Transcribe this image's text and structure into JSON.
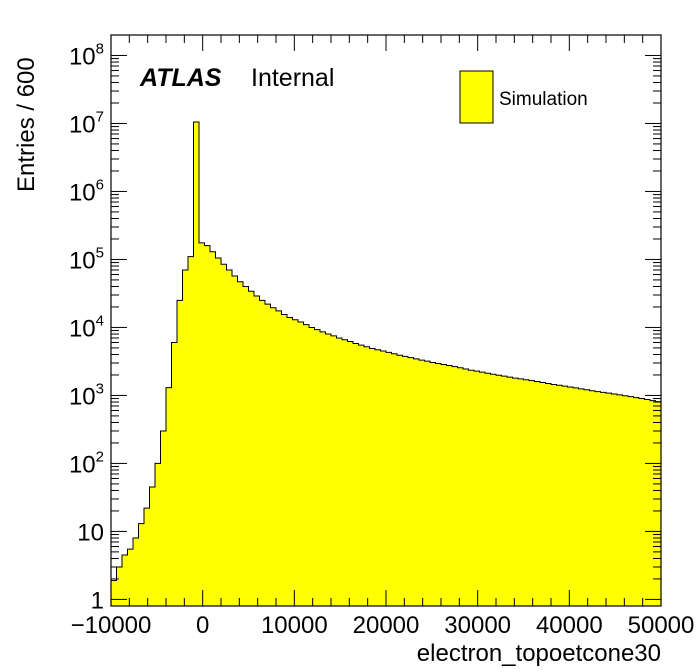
{
  "chart_data": {
    "type": "bar",
    "histogram": true,
    "xlabel": "electron_topoetcone30",
    "ylabel": "Entries / 600",
    "xlim": [
      -10000,
      50000
    ],
    "ylim": [
      0.8,
      200000000
    ],
    "log_y": true,
    "grid": false,
    "legend_position": "top-right",
    "label": {
      "experiment": "ATLAS",
      "status": "Internal"
    },
    "x_ticks": [
      {
        "value": -10000,
        "label": "−10000"
      },
      {
        "value": 0,
        "label": "0"
      },
      {
        "value": 10000,
        "label": "10000"
      },
      {
        "value": 20000,
        "label": "20000"
      },
      {
        "value": 30000,
        "label": "30000"
      },
      {
        "value": 40000,
        "label": "40000"
      },
      {
        "value": 50000,
        "label": "50000"
      }
    ],
    "y_ticks": [
      {
        "value": 1,
        "base": "1",
        "exp": ""
      },
      {
        "value": 10,
        "base": "10",
        "exp": ""
      },
      {
        "value": 100,
        "base": "10",
        "exp": "2"
      },
      {
        "value": 1000,
        "base": "10",
        "exp": "3"
      },
      {
        "value": 10000,
        "base": "10",
        "exp": "4"
      },
      {
        "value": 100000,
        "base": "10",
        "exp": "5"
      },
      {
        "value": 1000000,
        "base": "10",
        "exp": "6"
      },
      {
        "value": 10000000,
        "base": "10",
        "exp": "7"
      },
      {
        "value": 100000000,
        "base": "10",
        "exp": "8"
      }
    ],
    "series": [
      {
        "name": "Simulation",
        "color": "#ffff00",
        "edge_color": "#000000",
        "bin_width": 600,
        "bin_start": -10000,
        "values": [
          1.9,
          3,
          4.5,
          5.5,
          8,
          13,
          22,
          45,
          100,
          300,
          1300,
          6000,
          25000,
          70000,
          110000,
          10500000,
          175000,
          160000,
          130000,
          105000,
          85000,
          70000,
          57000,
          47000,
          40000,
          34000,
          29000,
          25000,
          22000,
          19500,
          17500,
          15500,
          14000,
          13000,
          12000,
          11000,
          10000,
          9300,
          8600,
          8000,
          7500,
          7000,
          6600,
          6200,
          5800,
          5500,
          5200,
          4900,
          4700,
          4500,
          4300,
          4100,
          3900,
          3750,
          3600,
          3450,
          3300,
          3200,
          3050,
          2950,
          2850,
          2750,
          2650,
          2550,
          2450,
          2350,
          2280,
          2200,
          2120,
          2050,
          1980,
          1920,
          1860,
          1800,
          1750,
          1700,
          1650,
          1600,
          1550,
          1500,
          1450,
          1410,
          1370,
          1330,
          1290,
          1250,
          1210,
          1170,
          1140,
          1110,
          1080,
          1050,
          1020,
          990,
          960,
          930,
          900,
          870,
          840,
          810
        ]
      }
    ]
  }
}
